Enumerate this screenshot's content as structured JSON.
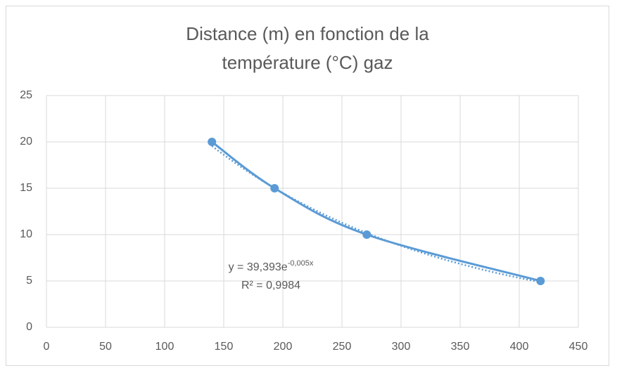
{
  "chart_data": {
    "type": "scatter",
    "title": "Distance (m) en fonction de la température (°C) gaz",
    "x": [
      140,
      193,
      271,
      418
    ],
    "series": [
      {
        "name": "Distance",
        "color": "#5b9bd5",
        "values": [
          20,
          15,
          10,
          5
        ]
      }
    ],
    "xlim": [
      0,
      450
    ],
    "xticks": [
      0,
      50,
      100,
      150,
      200,
      250,
      300,
      350,
      400,
      450
    ],
    "ylim": [
      0,
      25
    ],
    "yticks": [
      0,
      5,
      10,
      15,
      20,
      25
    ],
    "grid": true,
    "smooth": true,
    "trendline": {
      "kind": "exponential",
      "a": 39.393,
      "b": -0.005,
      "style": "dotted",
      "equation": "y = 39,393e",
      "exponent": "-0,005x",
      "r_squared": "R² = 0,9984"
    }
  }
}
